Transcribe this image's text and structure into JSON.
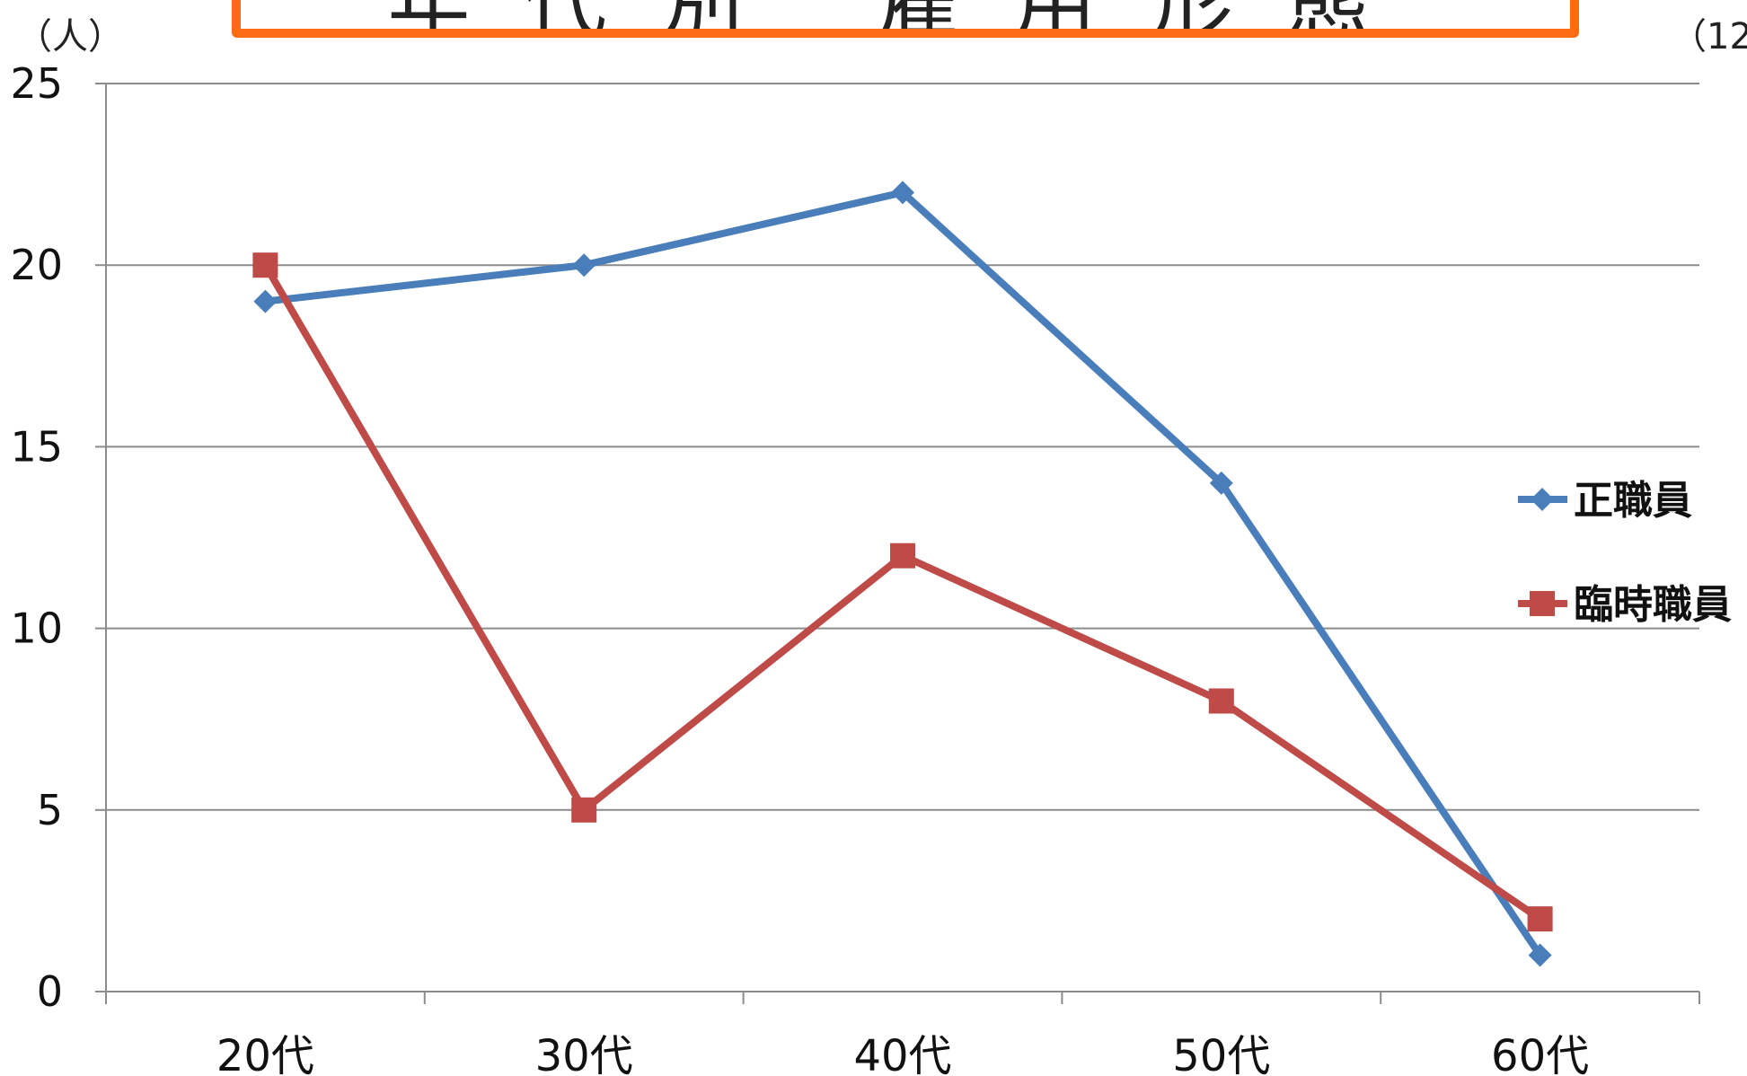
{
  "header": {
    "title": "年代別 雇用形態",
    "unit_left": "（人）",
    "unit_right": "（12"
  },
  "colors": {
    "series_1": "#4a7ebb",
    "series_2": "#be4b48",
    "title_border": "#ff6a13",
    "grid": "#8c8c8c"
  },
  "chart_data": {
    "type": "line",
    "title": "年代別 雇用形態",
    "ylabel": "（人）",
    "xlabel": "",
    "categories": [
      "20代",
      "30代",
      "40代",
      "50代",
      "60代"
    ],
    "ylim": [
      0,
      25
    ],
    "yticks": [
      0,
      5,
      10,
      15,
      20,
      25
    ],
    "grid": true,
    "legend_position": "right",
    "series": [
      {
        "name": "正職員",
        "marker": "diamond",
        "values": [
          19,
          20,
          22,
          14,
          1
        ]
      },
      {
        "name": "臨時職員",
        "marker": "square",
        "values": [
          20,
          5,
          12,
          8,
          2
        ]
      }
    ]
  }
}
